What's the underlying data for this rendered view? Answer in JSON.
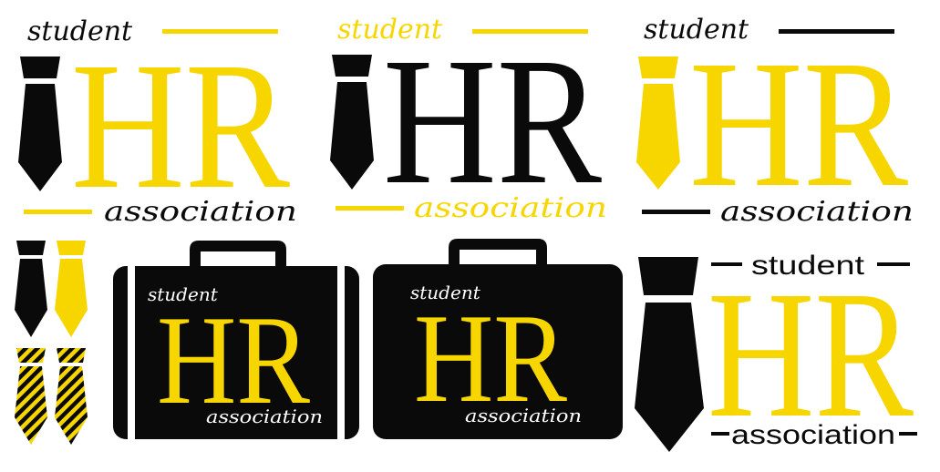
{
  "colors": {
    "yellow": "#f7d600",
    "black": "#0a0a0a",
    "white": "#ffffff"
  },
  "logos": [
    {
      "top": "student",
      "main": "HR",
      "bottom": "association"
    },
    {
      "top": "student",
      "main": "HR",
      "bottom": "association"
    },
    {
      "top": "student",
      "main": "HR",
      "bottom": "association"
    },
    {
      "top": "student",
      "main": "HR",
      "bottom": "association"
    },
    {
      "top": "student",
      "main": "HR",
      "bottom": "association"
    },
    {
      "top": "student",
      "main": "HR",
      "bottom": "association"
    }
  ],
  "icons": {
    "tie": "necktie-icon",
    "striped_tie": "striped-necktie-icon",
    "briefcase": "briefcase-icon"
  }
}
